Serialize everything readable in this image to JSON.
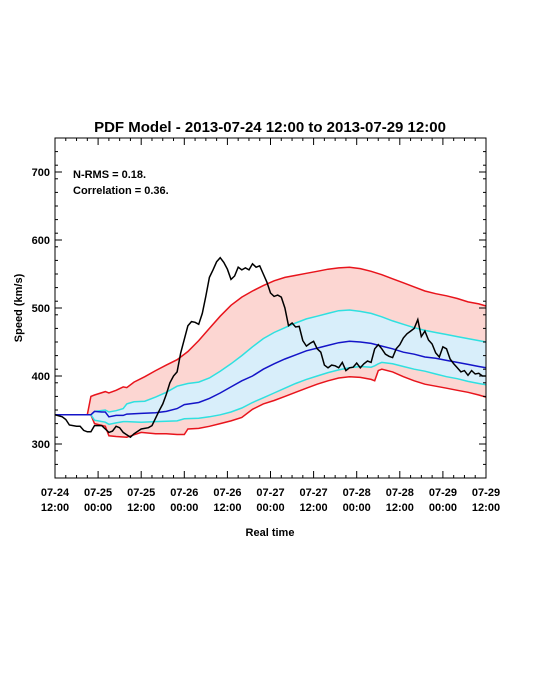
{
  "chart_data": {
    "type": "line",
    "title": "PDF Model - 2013-07-24 12:00 to 2013-07-29 12:00",
    "xlabel": "Real time",
    "ylabel": "Speed (km/s)",
    "xlim": [
      0,
      120
    ],
    "ylim": [
      250,
      750
    ],
    "y_ticks": [
      300,
      400,
      500,
      600,
      700
    ],
    "x_ticks": [
      {
        "h": 0,
        "line1": "07-24",
        "line2": "12:00"
      },
      {
        "h": 12,
        "line1": "07-25",
        "line2": "00:00"
      },
      {
        "h": 24,
        "line1": "07-25",
        "line2": "12:00"
      },
      {
        "h": 36,
        "line1": "07-26",
        "line2": "00:00"
      },
      {
        "h": 48,
        "line1": "07-26",
        "line2": "12:00"
      },
      {
        "h": 60,
        "line1": "07-27",
        "line2": "00:00"
      },
      {
        "h": 72,
        "line1": "07-27",
        "line2": "12:00"
      },
      {
        "h": 84,
        "line1": "07-28",
        "line2": "00:00"
      },
      {
        "h": 96,
        "line1": "07-28",
        "line2": "12:00"
      },
      {
        "h": 108,
        "line1": "07-29",
        "line2": "00:00"
      },
      {
        "h": 120,
        "line1": "07-29",
        "line2": "12:00"
      }
    ],
    "stats": {
      "nrms": "N-RMS = 0.18.",
      "correlation": "Correlation = 0.36."
    },
    "grid": false,
    "colors": {
      "outer_line": "#e8141c",
      "outer_fill": "#fcd6d2",
      "inner_line": "#2fe0e0",
      "inner_fill": "#d8eefa",
      "median": "#1414c8",
      "observed": "#000000"
    },
    "series": {
      "outer_upper": [
        [
          0,
          343
        ],
        [
          9,
          343
        ],
        [
          10,
          370
        ],
        [
          11,
          372
        ],
        [
          14,
          377
        ],
        [
          15,
          375
        ],
        [
          17,
          379
        ],
        [
          19,
          384
        ],
        [
          20,
          383
        ],
        [
          22,
          391
        ],
        [
          25,
          399
        ],
        [
          28,
          408
        ],
        [
          31,
          416
        ],
        [
          34,
          424
        ],
        [
          37,
          436
        ],
        [
          40,
          452
        ],
        [
          43,
          470
        ],
        [
          46,
          488
        ],
        [
          49,
          504
        ],
        [
          52,
          516
        ],
        [
          55,
          525
        ],
        [
          58,
          533
        ],
        [
          61,
          540
        ],
        [
          64,
          545
        ],
        [
          67,
          548
        ],
        [
          70,
          551
        ],
        [
          73,
          554
        ],
        [
          76,
          557
        ],
        [
          79,
          559
        ],
        [
          82,
          560
        ],
        [
          85,
          558
        ],
        [
          88,
          554
        ],
        [
          91,
          549
        ],
        [
          94,
          543
        ],
        [
          97,
          537
        ],
        [
          100,
          531
        ],
        [
          103,
          525
        ],
        [
          106,
          521
        ],
        [
          109,
          518
        ],
        [
          112,
          514
        ],
        [
          115,
          509
        ],
        [
          118,
          506
        ],
        [
          120,
          503
        ]
      ],
      "inner_upper": [
        [
          0,
          343
        ],
        [
          10,
          343
        ],
        [
          11,
          348
        ],
        [
          14,
          350
        ],
        [
          15,
          347
        ],
        [
          17,
          349
        ],
        [
          19,
          352
        ],
        [
          20,
          359
        ],
        [
          22,
          362
        ],
        [
          25,
          363
        ],
        [
          28,
          369
        ],
        [
          31,
          376
        ],
        [
          34,
          385
        ],
        [
          37,
          389
        ],
        [
          40,
          391
        ],
        [
          43,
          397
        ],
        [
          46,
          407
        ],
        [
          49,
          418
        ],
        [
          52,
          430
        ],
        [
          55,
          443
        ],
        [
          58,
          455
        ],
        [
          61,
          464
        ],
        [
          64,
          471
        ],
        [
          67,
          478
        ],
        [
          70,
          484
        ],
        [
          73,
          488
        ],
        [
          76,
          492
        ],
        [
          79,
          496
        ],
        [
          82,
          497
        ],
        [
          85,
          495
        ],
        [
          88,
          492
        ],
        [
          91,
          487
        ],
        [
          94,
          481
        ],
        [
          97,
          476
        ],
        [
          100,
          471
        ],
        [
          103,
          467
        ],
        [
          106,
          464
        ],
        [
          109,
          461
        ],
        [
          112,
          458
        ],
        [
          115,
          455
        ],
        [
          118,
          452
        ],
        [
          120,
          450
        ]
      ],
      "median": [
        [
          0,
          343
        ],
        [
          10,
          343
        ],
        [
          11,
          348
        ],
        [
          13,
          347
        ],
        [
          14,
          347
        ],
        [
          15,
          340
        ],
        [
          17,
          342
        ],
        [
          19,
          342
        ],
        [
          20,
          344
        ],
        [
          24,
          345
        ],
        [
          28,
          346
        ],
        [
          31,
          348
        ],
        [
          34,
          352
        ],
        [
          36,
          358
        ],
        [
          40,
          361
        ],
        [
          43,
          367
        ],
        [
          46,
          375
        ],
        [
          49,
          384
        ],
        [
          52,
          393
        ],
        [
          55,
          400
        ],
        [
          58,
          410
        ],
        [
          61,
          418
        ],
        [
          64,
          425
        ],
        [
          67,
          431
        ],
        [
          70,
          437
        ],
        [
          73,
          441
        ],
        [
          76,
          445
        ],
        [
          79,
          449
        ],
        [
          82,
          451
        ],
        [
          85,
          450
        ],
        [
          88,
          448
        ],
        [
          91,
          444
        ],
        [
          94,
          440
        ],
        [
          97,
          435
        ],
        [
          100,
          432
        ],
        [
          103,
          428
        ],
        [
          106,
          426
        ],
        [
          109,
          423
        ],
        [
          112,
          420
        ],
        [
          115,
          417
        ],
        [
          118,
          414
        ],
        [
          120,
          412
        ]
      ],
      "inner_lower": [
        [
          0,
          343
        ],
        [
          10,
          343
        ],
        [
          11,
          335
        ],
        [
          14,
          332
        ],
        [
          15,
          329
        ],
        [
          17,
          331
        ],
        [
          19,
          333
        ],
        [
          20,
          333
        ],
        [
          24,
          332
        ],
        [
          28,
          333
        ],
        [
          34,
          334
        ],
        [
          36,
          337
        ],
        [
          40,
          338
        ],
        [
          43,
          340
        ],
        [
          46,
          343
        ],
        [
          49,
          347
        ],
        [
          52,
          353
        ],
        [
          55,
          361
        ],
        [
          58,
          368
        ],
        [
          61,
          375
        ],
        [
          64,
          382
        ],
        [
          67,
          389
        ],
        [
          70,
          395
        ],
        [
          73,
          400
        ],
        [
          76,
          405
        ],
        [
          79,
          409
        ],
        [
          82,
          412
        ],
        [
          85,
          414
        ],
        [
          88,
          413
        ],
        [
          89,
          415
        ],
        [
          90,
          418
        ],
        [
          91,
          420
        ],
        [
          94,
          418
        ],
        [
          97,
          414
        ],
        [
          100,
          410
        ],
        [
          103,
          407
        ],
        [
          106,
          403
        ],
        [
          109,
          399
        ],
        [
          112,
          396
        ],
        [
          115,
          392
        ],
        [
          118,
          389
        ],
        [
          120,
          387
        ]
      ],
      "outer_lower": [
        [
          0,
          343
        ],
        [
          10,
          343
        ],
        [
          11,
          330
        ],
        [
          14,
          326
        ],
        [
          15,
          312
        ],
        [
          17,
          311
        ],
        [
          20,
          310
        ],
        [
          24,
          317
        ],
        [
          28,
          315
        ],
        [
          31,
          315
        ],
        [
          34,
          314
        ],
        [
          36,
          314
        ],
        [
          37,
          322
        ],
        [
          40,
          323
        ],
        [
          43,
          326
        ],
        [
          46,
          330
        ],
        [
          49,
          334
        ],
        [
          52,
          339
        ],
        [
          55,
          351
        ],
        [
          58,
          359
        ],
        [
          61,
          364
        ],
        [
          64,
          370
        ],
        [
          67,
          376
        ],
        [
          70,
          382
        ],
        [
          73,
          388
        ],
        [
          76,
          393
        ],
        [
          79,
          397
        ],
        [
          82,
          399
        ],
        [
          85,
          398
        ],
        [
          88,
          395
        ],
        [
          89,
          393
        ],
        [
          90,
          408
        ],
        [
          91,
          410
        ],
        [
          94,
          406
        ],
        [
          97,
          399
        ],
        [
          100,
          393
        ],
        [
          103,
          388
        ],
        [
          106,
          385
        ],
        [
          109,
          382
        ],
        [
          112,
          379
        ],
        [
          115,
          376
        ],
        [
          118,
          372
        ],
        [
          120,
          369
        ]
      ],
      "observed": [
        [
          0,
          343
        ],
        [
          2,
          340
        ],
        [
          3,
          336
        ],
        [
          4,
          328
        ],
        [
          6,
          326
        ],
        [
          7,
          326
        ],
        [
          8,
          320
        ],
        [
          9,
          318
        ],
        [
          10,
          318
        ],
        [
          11,
          327
        ],
        [
          13,
          327
        ],
        [
          14,
          322
        ],
        [
          15,
          317
        ],
        [
          16,
          319
        ],
        [
          17,
          326
        ],
        [
          18,
          324
        ],
        [
          19,
          317
        ],
        [
          21,
          310
        ],
        [
          22,
          315
        ],
        [
          24,
          322
        ],
        [
          26,
          324
        ],
        [
          27,
          327
        ],
        [
          29,
          349
        ],
        [
          30,
          359
        ],
        [
          31,
          373
        ],
        [
          32,
          390
        ],
        [
          33,
          400
        ],
        [
          34,
          406
        ],
        [
          35,
          434
        ],
        [
          36,
          454
        ],
        [
          37,
          474
        ],
        [
          38,
          480
        ],
        [
          39,
          479
        ],
        [
          40,
          476
        ],
        [
          41,
          492
        ],
        [
          42,
          517
        ],
        [
          43,
          545
        ],
        [
          44,
          556
        ],
        [
          45,
          568
        ],
        [
          46,
          574
        ],
        [
          47,
          567
        ],
        [
          48,
          557
        ],
        [
          49,
          542
        ],
        [
          50,
          547
        ],
        [
          51,
          560
        ],
        [
          52,
          556
        ],
        [
          53,
          559
        ],
        [
          54,
          556
        ],
        [
          55,
          565
        ],
        [
          56,
          560
        ],
        [
          57,
          562
        ],
        [
          58,
          550
        ],
        [
          59,
          538
        ],
        [
          60,
          522
        ],
        [
          61,
          517
        ],
        [
          62,
          519
        ],
        [
          63,
          516
        ],
        [
          64,
          500
        ],
        [
          65,
          474
        ],
        [
          66,
          478
        ],
        [
          67,
          472
        ],
        [
          68,
          473
        ],
        [
          69,
          452
        ],
        [
          70,
          444
        ],
        [
          71,
          448
        ],
        [
          72,
          451
        ],
        [
          73,
          440
        ],
        [
          74,
          435
        ],
        [
          75,
          416
        ],
        [
          76,
          412
        ],
        [
          77,
          416
        ],
        [
          78,
          415
        ],
        [
          79,
          412
        ],
        [
          80,
          420
        ],
        [
          81,
          408
        ],
        [
          82,
          412
        ],
        [
          83,
          413
        ],
        [
          84,
          419
        ],
        [
          85,
          412
        ],
        [
          86,
          418
        ],
        [
          87,
          422
        ],
        [
          88,
          420
        ],
        [
          89,
          440
        ],
        [
          90,
          446
        ],
        [
          91,
          440
        ],
        [
          92,
          432
        ],
        [
          93,
          429
        ],
        [
          94,
          427
        ],
        [
          95,
          440
        ],
        [
          96,
          446
        ],
        [
          97,
          456
        ],
        [
          98,
          462
        ],
        [
          99,
          466
        ],
        [
          100,
          470
        ],
        [
          101,
          483
        ],
        [
          102,
          458
        ],
        [
          103,
          466
        ],
        [
          104,
          453
        ],
        [
          105,
          447
        ],
        [
          106,
          434
        ],
        [
          107,
          428
        ],
        [
          108,
          443
        ],
        [
          109,
          440
        ],
        [
          110,
          425
        ],
        [
          111,
          418
        ],
        [
          112,
          412
        ],
        [
          113,
          406
        ],
        [
          114,
          408
        ],
        [
          115,
          401
        ],
        [
          116,
          408
        ],
        [
          117,
          403
        ],
        [
          118,
          404
        ],
        [
          119,
          400
        ],
        [
          120,
          400
        ]
      ]
    }
  }
}
